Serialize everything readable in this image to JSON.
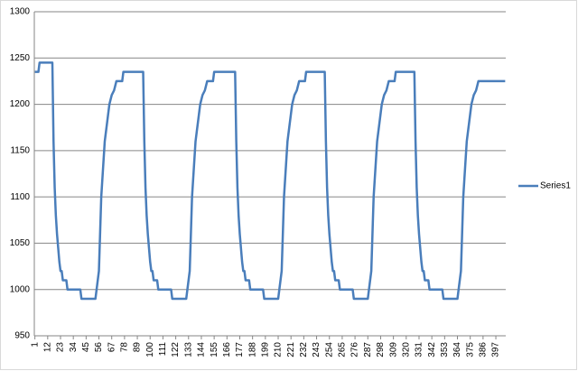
{
  "chart_data": {
    "type": "line",
    "x": [
      1,
      4,
      5,
      16,
      17,
      18,
      19,
      20,
      21,
      22,
      23,
      24,
      25,
      28,
      29,
      40,
      41,
      53,
      54,
      55,
      56,
      57,
      58,
      59,
      60,
      61,
      62,
      63,
      64,
      65,
      67,
      69,
      71,
      76,
      77,
      94,
      95,
      96,
      97,
      98,
      99,
      100,
      101,
      102,
      103,
      106,
      107,
      118,
      119,
      131,
      132,
      133,
      134,
      135,
      136,
      137,
      138,
      139,
      140,
      141,
      142,
      143,
      145,
      147,
      149,
      154,
      155,
      173,
      174,
      175,
      176,
      177,
      178,
      179,
      180,
      181,
      182,
      185,
      186,
      197,
      198,
      210,
      211,
      212,
      213,
      214,
      215,
      216,
      217,
      218,
      219,
      220,
      221,
      222,
      224,
      226,
      228,
      233,
      234,
      250,
      251,
      252,
      253,
      254,
      255,
      256,
      257,
      258,
      259,
      262,
      263,
      274,
      275,
      287,
      288,
      289,
      290,
      291,
      292,
      293,
      294,
      295,
      296,
      297,
      298,
      299,
      301,
      303,
      305,
      310,
      311,
      327,
      328,
      329,
      330,
      331,
      332,
      333,
      334,
      335,
      336,
      339,
      340,
      351,
      352,
      364,
      365,
      366,
      367,
      368,
      369,
      370,
      371,
      372,
      373,
      374,
      375,
      376,
      378,
      380,
      382,
      405
    ],
    "series": [
      {
        "name": "Series1",
        "color": "#4a7ebb",
        "values": [
          1235,
          1235,
          1245,
          1245,
          1160,
          1110,
          1080,
          1060,
          1045,
          1030,
          1020,
          1020,
          1010,
          1010,
          1000,
          1000,
          990,
          990,
          1000,
          1010,
          1020,
          1060,
          1100,
          1120,
          1140,
          1160,
          1170,
          1180,
          1190,
          1200,
          1210,
          1215,
          1225,
          1225,
          1235,
          1235,
          1160,
          1110,
          1080,
          1060,
          1045,
          1030,
          1020,
          1020,
          1010,
          1010,
          1000,
          1000,
          990,
          990,
          1000,
          1010,
          1020,
          1060,
          1100,
          1120,
          1140,
          1160,
          1170,
          1180,
          1190,
          1200,
          1210,
          1215,
          1225,
          1225,
          1235,
          1235,
          1160,
          1110,
          1080,
          1060,
          1045,
          1030,
          1020,
          1020,
          1010,
          1010,
          1000,
          1000,
          990,
          990,
          1000,
          1010,
          1020,
          1060,
          1100,
          1120,
          1140,
          1160,
          1170,
          1180,
          1190,
          1200,
          1210,
          1215,
          1225,
          1225,
          1235,
          1235,
          1160,
          1110,
          1080,
          1060,
          1045,
          1030,
          1020,
          1020,
          1010,
          1010,
          1000,
          1000,
          990,
          990,
          1000,
          1010,
          1020,
          1060,
          1100,
          1120,
          1140,
          1160,
          1170,
          1180,
          1190,
          1200,
          1210,
          1215,
          1225,
          1225,
          1235,
          1235,
          1160,
          1110,
          1080,
          1060,
          1045,
          1030,
          1020,
          1020,
          1010,
          1010,
          1000,
          1000,
          990,
          990,
          1000,
          1010,
          1020,
          1060,
          1100,
          1120,
          1140,
          1160,
          1170,
          1180,
          1190,
          1200,
          1210,
          1215,
          1225,
          1225
        ]
      }
    ],
    "xlim": [
      0.5,
      405.5
    ],
    "xticks": [
      1,
      12,
      23,
      34,
      45,
      56,
      67,
      78,
      89,
      100,
      111,
      122,
      133,
      144,
      155,
      166,
      177,
      188,
      199,
      210,
      221,
      232,
      243,
      254,
      265,
      276,
      287,
      298,
      309,
      320,
      331,
      342,
      353,
      364,
      375,
      386,
      397
    ],
    "ylim": [
      950,
      1300
    ],
    "yticks": [
      950,
      1000,
      1050,
      1100,
      1150,
      1200,
      1250,
      1300
    ],
    "grid": true,
    "legend": "right"
  }
}
